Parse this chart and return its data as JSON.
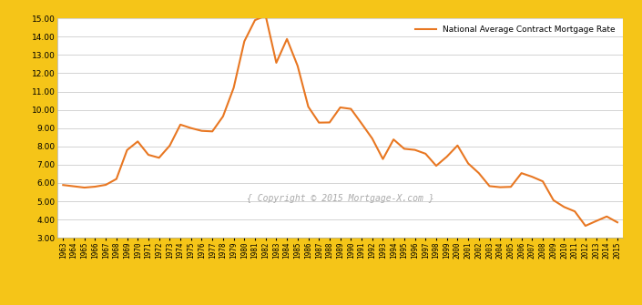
{
  "legend_label": "National Average Contract Mortgage Rate",
  "outer_bg_color": "#f5c518",
  "plot_bg_color": "#ffffff",
  "fig_bg_color": "#ffffff",
  "line_color": "#e87722",
  "line_width": 1.5,
  "ylim": [
    3.0,
    15.0
  ],
  "ytick_step": 1.0,
  "copyright_text": "{ Copyright © 2015 Mortgage-X.com }",
  "years": [
    1963,
    1964,
    1965,
    1966,
    1967,
    1968,
    1969,
    1970,
    1971,
    1972,
    1973,
    1974,
    1975,
    1976,
    1977,
    1978,
    1979,
    1980,
    1981,
    1982,
    1983,
    1984,
    1985,
    1986,
    1987,
    1988,
    1989,
    1990,
    1991,
    1992,
    1993,
    1994,
    1995,
    1996,
    1997,
    1998,
    1999,
    2000,
    2001,
    2002,
    2003,
    2004,
    2005,
    2006,
    2007,
    2008,
    2009,
    2010,
    2011,
    2012,
    2013,
    2014,
    2015
  ],
  "rates": [
    5.89,
    5.82,
    5.75,
    5.8,
    5.9,
    6.22,
    7.8,
    8.27,
    7.54,
    7.38,
    8.04,
    9.19,
    9.0,
    8.85,
    8.82,
    9.64,
    11.2,
    13.74,
    14.9,
    15.14,
    12.57,
    13.87,
    12.4,
    10.17,
    9.3,
    9.31,
    10.13,
    10.05,
    9.25,
    8.43,
    7.31,
    8.38,
    7.87,
    7.81,
    7.6,
    6.94,
    7.44,
    8.05,
    7.07,
    6.54,
    5.83,
    5.77,
    5.79,
    6.54,
    6.34,
    6.09,
    5.06,
    4.69,
    4.45,
    3.66,
    3.92,
    4.17,
    3.85
  ]
}
